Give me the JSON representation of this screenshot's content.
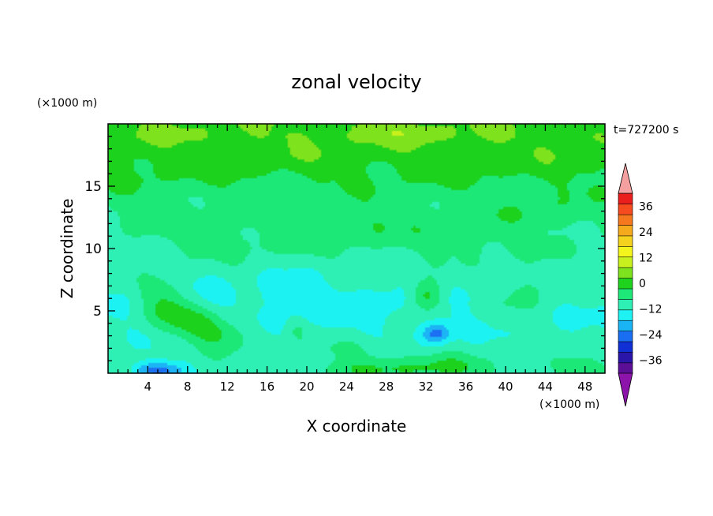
{
  "chart_data": {
    "type": "heatmap",
    "title": "zonal velocity",
    "xlabel": "X coordinate",
    "ylabel": "Z coordinate",
    "x_unit": "(×1000 m)",
    "y_unit": "(×1000 m)",
    "time_label": "t=727200 s",
    "xlim": [
      0,
      50
    ],
    "ylim": [
      0,
      20
    ],
    "x_ticks": [
      4,
      8,
      12,
      16,
      20,
      24,
      28,
      32,
      36,
      40,
      44,
      48
    ],
    "y_ticks": [
      5,
      10,
      15
    ],
    "colorbar": {
      "min": -42,
      "max": 42,
      "step": 6,
      "tick_values": [
        36,
        24,
        12,
        0,
        -12,
        -24,
        -36
      ],
      "tick_labels": [
        "36",
        "24",
        "12",
        "0",
        "−12",
        "−24",
        "−36"
      ],
      "colors": [
        "#5a0f96",
        "#2a16a8",
        "#1030d6",
        "#1a6ef2",
        "#1ab4f5",
        "#1ef2f2",
        "#2ef0b4",
        "#1ee878",
        "#1ed21e",
        "#7ee21e",
        "#c8f01e",
        "#f5f51e",
        "#f5d21e",
        "#f5aa1e",
        "#f5781e",
        "#f54b1e",
        "#eb1e1e"
      ],
      "over_color": "#f5a0a0",
      "under_color": "#8c14aa"
    },
    "field": {
      "background_profile": [
        {
          "z": 0,
          "u": -2
        },
        {
          "z": 3,
          "u": -5
        },
        {
          "z": 6,
          "u": -6
        },
        {
          "z": 8,
          "u": -4
        },
        {
          "z": 10,
          "u": -1
        },
        {
          "z": 12,
          "u": 1
        },
        {
          "z": 14,
          "u": 3
        },
        {
          "z": 15,
          "u": 5
        },
        {
          "z": 16,
          "u": 7
        },
        {
          "z": 17.5,
          "u": 10
        },
        {
          "z": 19,
          "u": 12
        },
        {
          "z": 20,
          "u": 11
        }
      ],
      "features": [
        {
          "x": 6,
          "z": 5.8,
          "sx": 2.0,
          "sz": 1.4,
          "amp": 12
        },
        {
          "x": 11,
          "z": 3.2,
          "sx": 2.5,
          "sz": 0.9,
          "amp": 11
        },
        {
          "x": 8.5,
          "z": 4.2,
          "sx": 2.0,
          "sz": 0.8,
          "amp": 8
        },
        {
          "x": 32,
          "z": 6.2,
          "sx": 1.2,
          "sz": 0.9,
          "amp": 16
        },
        {
          "x": 33,
          "z": 3.2,
          "sx": 1.0,
          "sz": 0.6,
          "amp": -16
        },
        {
          "x": 42,
          "z": 6.5,
          "sx": 2.5,
          "sz": 1.3,
          "amp": 7
        },
        {
          "x": 5,
          "z": 0.2,
          "sx": 1.8,
          "sz": 0.5,
          "amp": -20
        },
        {
          "x": 27,
          "z": 0.4,
          "sx": 4.0,
          "sz": 0.6,
          "amp": 7
        },
        {
          "x": 34,
          "z": 0.5,
          "sx": 3.0,
          "sz": 0.7,
          "amp": 8
        },
        {
          "x": 47,
          "z": 0.6,
          "sx": 2.0,
          "sz": 0.6,
          "amp": 6
        },
        {
          "x": 25,
          "z": 2.0,
          "sx": 3.0,
          "sz": 0.7,
          "amp": 5
        },
        {
          "x": 26,
          "z": 11.5,
          "sx": 3.0,
          "sz": 1.2,
          "amp": 4
        },
        {
          "x": 36,
          "z": 11.0,
          "sx": 4.0,
          "sz": 1.3,
          "amp": 4
        },
        {
          "x": 14,
          "z": 10.5,
          "sx": 4.0,
          "sz": 1.0,
          "amp": 3
        },
        {
          "x": 44,
          "z": 13.0,
          "sx": 3.0,
          "sz": 1.0,
          "amp": 3
        },
        {
          "x": 29,
          "z": 19.5,
          "sx": 3.0,
          "sz": 0.6,
          "amp": 4
        },
        {
          "x": 18,
          "z": 6.0,
          "sx": 3.0,
          "sz": 1.5,
          "amp": -3
        },
        {
          "x": 27,
          "z": 5.5,
          "sx": 4.0,
          "sz": 1.5,
          "amp": -3
        },
        {
          "x": 19,
          "z": 3.5,
          "sx": 0.6,
          "sz": 0.6,
          "amp": 5
        },
        {
          "x": 9,
          "z": 7.0,
          "sx": 2.0,
          "sz": 1.0,
          "amp": -3
        }
      ]
    }
  }
}
